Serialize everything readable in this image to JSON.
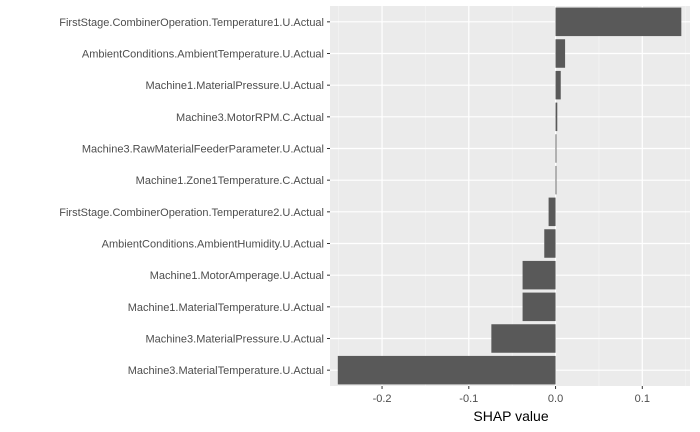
{
  "chart_data": {
    "type": "bar",
    "orientation": "horizontal",
    "xlabel": "SHAP value",
    "ylabel": "",
    "xlim": [
      -0.26,
      0.155
    ],
    "xticks": [
      -0.2,
      -0.1,
      0.0,
      0.1
    ],
    "xtick_labels": [
      "-0.2",
      "-0.1",
      "0.0",
      "0.1"
    ],
    "grid": true,
    "bar_color": "#595959",
    "panel_color": "#ebebeb",
    "categories": [
      "FirstStage.CombinerOperation.Temperature1.U.Actual",
      "AmbientConditions.AmbientTemperature.U.Actual",
      "Machine1.MaterialPressure.U.Actual",
      "Machine3.MotorRPM.C.Actual",
      "Machine3.RawMaterialFeederParameter.U.Actual",
      "Machine1.Zone1Temperature.C.Actual",
      "FirstStage.CombinerOperation.Temperature2.U.Actual",
      "AmbientConditions.AmbientHumidity.U.Actual",
      "Machine1.MotorAmperage.U.Actual",
      "Machine1.MaterialTemperature.U.Actual",
      "Machine3.MaterialPressure.U.Actual",
      "Machine3.MaterialTemperature.U.Actual"
    ],
    "values": [
      0.145,
      0.011,
      0.006,
      0.002,
      0.001,
      0.001,
      -0.008,
      -0.013,
      -0.038,
      -0.038,
      -0.074,
      -0.251
    ]
  }
}
